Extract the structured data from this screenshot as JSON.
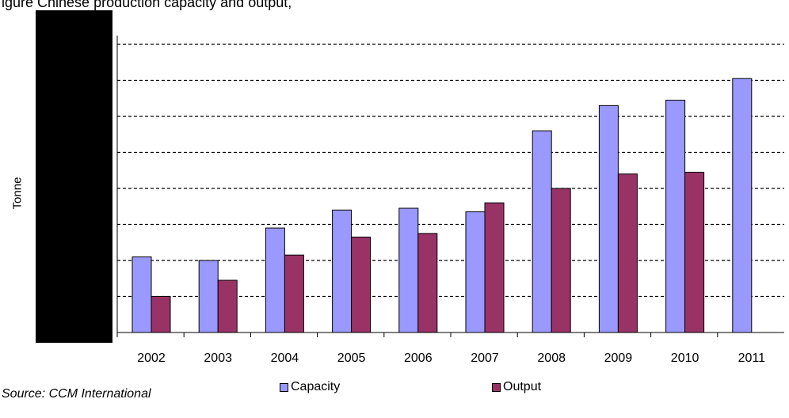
{
  "header": {
    "title_fragment": "igure   Chinese     production capacity and output,"
  },
  "source": "Source: CCM International",
  "chart_data": {
    "type": "bar",
    "ylabel": "Tonne",
    "xlabel": "",
    "ylim": [
      0,
      8
    ],
    "grid": true,
    "gridline_style": "dashed",
    "legend_position": "bottom",
    "categories": [
      "2002",
      "2003",
      "2004",
      "2005",
      "2006",
      "2007",
      "2008",
      "2009",
      "2010",
      "2011"
    ],
    "series": [
      {
        "name": "Capacity",
        "color": "#9999ff",
        "values": [
          2.1,
          2.0,
          2.9,
          3.4,
          3.45,
          3.35,
          5.6,
          6.3,
          6.45,
          7.05
        ]
      },
      {
        "name": "Output",
        "color": "#993366",
        "values": [
          1.0,
          1.45,
          2.15,
          2.65,
          2.75,
          3.6,
          4.0,
          4.4,
          4.45,
          null
        ]
      }
    ]
  }
}
